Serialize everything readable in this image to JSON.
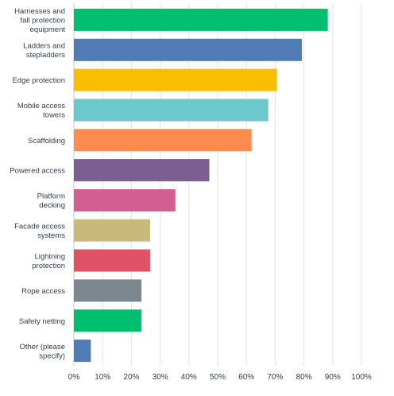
{
  "chart_data": {
    "type": "bar",
    "orientation": "horizontal",
    "categories": [
      [
        "Harnesses and",
        "fall protection",
        "equipment"
      ],
      [
        "Ladders and",
        "stepladders"
      ],
      [
        "Edge protection"
      ],
      [
        "Mobile access",
        "towers"
      ],
      [
        "Scaffolding"
      ],
      [
        "Powered access"
      ],
      [
        "Platform",
        "decking"
      ],
      [
        "Facade access",
        "systems"
      ],
      [
        "Lightning",
        "protection"
      ],
      [
        "Rope access"
      ],
      [
        "Safety netting"
      ],
      [
        "Other (please",
        "specify)"
      ]
    ],
    "values": [
      88.3,
      79.3,
      70.6,
      67.6,
      61.8,
      47.1,
      35.3,
      26.5,
      26.5,
      23.5,
      23.5,
      5.9
    ],
    "colors": [
      "#00BF6F",
      "#507CB6",
      "#F9BE00",
      "#6BC8CD",
      "#FF8B4F",
      "#7D5E90",
      "#D25F90",
      "#C9B97B",
      "#E05265",
      "#7D878F",
      "#00BF6F",
      "#507CB6"
    ],
    "x_ticks": [
      "0%",
      "10%",
      "20%",
      "30%",
      "40%",
      "50%",
      "60%",
      "70%",
      "80%",
      "90%",
      "100%"
    ],
    "xlim": [
      0,
      100
    ],
    "grid": true,
    "legend": "none"
  }
}
